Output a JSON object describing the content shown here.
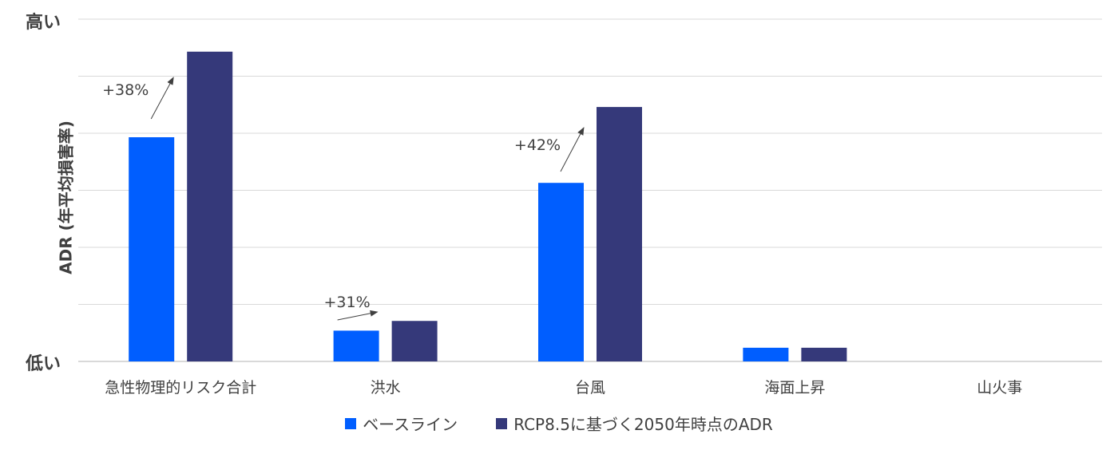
{
  "chart_data": {
    "type": "bar",
    "title": "",
    "ylabel": "ADR (年平均損害率)",
    "y_high_label": "高い",
    "y_low_label": "低い",
    "ylim": [
      0,
      6
    ],
    "grid": true,
    "legend_position": "bottom",
    "categories": [
      "急性物理的リスク合計",
      "洪水",
      "台風",
      "海面上昇",
      "山火事"
    ],
    "series": [
      {
        "name": "ベースライン",
        "color": "#005EFF",
        "values": [
          3.93,
          0.54,
          3.13,
          0.24,
          0
        ]
      },
      {
        "name": "RCP8.5に基づく2050年時点のADR",
        "color": "#35397A",
        "values": [
          5.43,
          0.71,
          4.46,
          0.24,
          0
        ]
      }
    ],
    "annotations": [
      {
        "category": "急性物理的リスク合計",
        "text": "+38%"
      },
      {
        "category": "洪水",
        "text": "+31%"
      },
      {
        "category": "台風",
        "text": "+42%"
      }
    ]
  }
}
